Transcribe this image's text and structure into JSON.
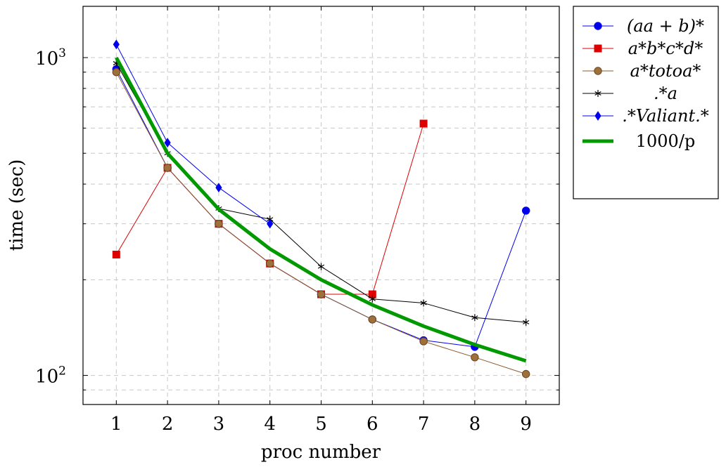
{
  "chart_data": {
    "type": "line",
    "xlabel": "proc number",
    "ylabel": "time (sec)",
    "yscale": "log",
    "x": [
      1,
      2,
      3,
      4,
      5,
      6,
      7,
      8,
      9
    ],
    "xlim": [
      0.35,
      9.65
    ],
    "ylim": [
      81,
      1450
    ],
    "xticks": [
      "1",
      "2",
      "3",
      "4",
      "5",
      "6",
      "7",
      "8",
      "9"
    ],
    "yticks": [
      {
        "value": 100,
        "base": "10",
        "exp": "2"
      },
      {
        "value": 1000,
        "base": "10",
        "exp": "3"
      }
    ],
    "grid": true,
    "legend_position": "outside-right",
    "series": [
      {
        "name": "(aa + b)*",
        "color": "#0000ee",
        "marker": "circle",
        "line_width": 1,
        "x": [
          1,
          2,
          3,
          4,
          5,
          6,
          7,
          8,
          9
        ],
        "values": [
          920,
          450,
          300,
          225,
          180,
          150,
          129,
          123,
          330
        ]
      },
      {
        "name": "a*b*c*d*",
        "color": "#dd0000",
        "marker": "square",
        "line_width": 1,
        "x": [
          1,
          2,
          3,
          4,
          5,
          6,
          7
        ],
        "values": [
          240,
          450,
          300,
          225,
          180,
          180,
          620
        ]
      },
      {
        "name": "a*totoa*",
        "color": "#8b5a2b",
        "marker": "circle",
        "line_width": 1,
        "x": [
          1,
          2,
          3,
          4,
          5,
          6,
          7,
          8,
          9
        ],
        "values": [
          900,
          450,
          300,
          225,
          180,
          150,
          128,
          114,
          101
        ]
      },
      {
        "name": ".*a",
        "color": "#000000",
        "marker": "star",
        "line_width": 1,
        "x": [
          1,
          2,
          3,
          4,
          5,
          6,
          7,
          8,
          9
        ],
        "values": [
          960,
          500,
          335,
          310,
          220,
          174,
          169,
          152,
          147
        ]
      },
      {
        "name": ".*Valiant.*",
        "color": "#0000ee",
        "marker": "diamond",
        "line_width": 1,
        "x": [
          1,
          2,
          3,
          4
        ],
        "values": [
          1100,
          540,
          390,
          300
        ]
      },
      {
        "name": "1000/p",
        "color": "#009900",
        "marker": "none",
        "line_width": 5,
        "x": [
          1,
          2,
          3,
          4,
          5,
          6,
          7,
          8,
          9
        ],
        "values": [
          1000,
          500,
          333.3,
          250,
          200,
          166.7,
          142.9,
          125,
          111.1
        ]
      }
    ]
  }
}
